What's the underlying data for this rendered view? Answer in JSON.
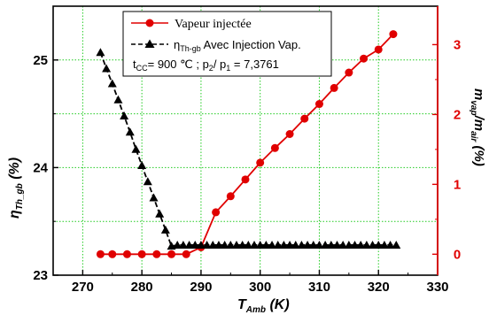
{
  "chart_data": {
    "type": "line",
    "x_axis": {
      "min": 265,
      "max": 330,
      "ticks": [
        270,
        280,
        290,
        300,
        310,
        320,
        330
      ],
      "tick_labels": [
        "270",
        "280",
        "290",
        "300",
        "310",
        "320",
        "330"
      ],
      "title_main": "T",
      "title_sub": "Amb",
      "title_unit": " (K)"
    },
    "y_left": {
      "min": 23,
      "max": 25.5,
      "ticks": [
        23,
        24,
        25
      ],
      "tick_labels": [
        "23",
        "24",
        "25"
      ],
      "minor_grid": [
        23.5,
        24.5
      ],
      "title_main": "η",
      "title_sub": "Th_gb",
      "title_unit": " (%)"
    },
    "y_right": {
      "min": -0.3,
      "max": 3.55,
      "ticks": [
        0,
        1,
        2,
        3
      ],
      "tick_labels": [
        "0",
        "1",
        "2",
        "3"
      ],
      "title_main": "m",
      "title_sub1": "vap",
      "title_mid": "/m",
      "title_sub2": "air",
      "title_unit": " (%)",
      "color": "#e00000"
    },
    "grid": true,
    "grid_color": "#22cc22",
    "series": [
      {
        "name": "Vapeur injectée",
        "axis": "right",
        "color": "#e00000",
        "marker": "circle",
        "x": [
          273,
          275,
          277.5,
          280,
          282.5,
          285,
          287.5,
          290,
          292.5,
          295,
          297.5,
          300,
          302.5,
          305,
          307.5,
          310,
          312.5,
          315,
          317.5,
          320,
          322.5
        ],
        "y": [
          0,
          0,
          0,
          0,
          0,
          0,
          0,
          0.1,
          0.6,
          0.83,
          1.07,
          1.31,
          1.52,
          1.72,
          1.94,
          2.15,
          2.38,
          2.6,
          2.8,
          2.93,
          3.15
        ]
      },
      {
        "name_main": "η",
        "name_sub": "Th-gb",
        "name_rest": " Avec Injection Vap.",
        "axis": "left",
        "color": "#000000",
        "marker": "triangle",
        "x": [
          273,
          274,
          275,
          276,
          277,
          278,
          279,
          280,
          281,
          282,
          283,
          284,
          285,
          286,
          287,
          288,
          289,
          290,
          291,
          292,
          293,
          294,
          295,
          296,
          297,
          298,
          299,
          300,
          301,
          302,
          303,
          304,
          305,
          306,
          307,
          308,
          309,
          310,
          311,
          312,
          313,
          314,
          315,
          316,
          317,
          318,
          319,
          320,
          321,
          322,
          323
        ],
        "y": [
          25.07,
          24.92,
          24.78,
          24.63,
          24.48,
          24.33,
          24.17,
          24.02,
          23.87,
          23.72,
          23.57,
          23.42,
          23.27,
          23.28,
          23.28,
          23.28,
          23.28,
          23.28,
          23.28,
          23.28,
          23.28,
          23.28,
          23.28,
          23.28,
          23.28,
          23.28,
          23.28,
          23.28,
          23.28,
          23.28,
          23.28,
          23.28,
          23.28,
          23.28,
          23.28,
          23.28,
          23.28,
          23.28,
          23.28,
          23.28,
          23.28,
          23.28,
          23.28,
          23.28,
          23.28,
          23.28,
          23.28,
          23.28,
          23.28,
          23.28,
          23.28
        ]
      }
    ],
    "legend": {
      "placement": "top-center",
      "line3": {
        "t": "t",
        "t_sub": "CC",
        "t_val": "= 900 ℃ ; p",
        "p2_sub": "2",
        "p_mid": "/ p",
        "p1_sub": "1",
        "p_val": " = 7,3761"
      }
    }
  }
}
